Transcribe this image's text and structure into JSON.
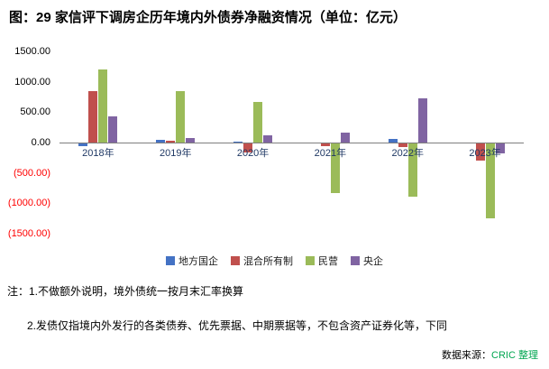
{
  "title": "图：29 家信评下调房企历年境内外债券净融资情况（单位：亿元）",
  "chart_data": {
    "type": "bar",
    "title": "图：29 家信评下调房企历年境内外债券净融资情况（单位：亿元）",
    "categories": [
      "2018年",
      "2019年",
      "2020年",
      "2021年",
      "2022年",
      "2023年"
    ],
    "series": [
      {
        "name": "地方国企",
        "color": "#4472C4",
        "values": [
          -60,
          40,
          15,
          -15,
          55,
          -20
        ]
      },
      {
        "name": "混合所有制",
        "color": "#C0504D",
        "values": [
          840,
          25,
          -160,
          -55,
          -70,
          -300
        ]
      },
      {
        "name": "民营",
        "color": "#9BBB59",
        "values": [
          1200,
          840,
          675,
          -825,
          -885,
          -1245
        ]
      },
      {
        "name": "央企",
        "color": "#8064A2",
        "values": [
          430,
          75,
          115,
          165,
          735,
          -180
        ]
      }
    ],
    "xlabel": "",
    "ylabel": "",
    "ylim": [
      -1500,
      1500
    ],
    "ytick_step": 500,
    "yticks": [
      {
        "v": 1500,
        "label": "1500.00"
      },
      {
        "v": 1000,
        "label": "1000.00"
      },
      {
        "v": 500,
        "label": "500.00"
      },
      {
        "v": 0,
        "label": "0.00"
      },
      {
        "v": -500,
        "label": "(500.00)"
      },
      {
        "v": -1000,
        "label": "(1000.00)"
      },
      {
        "v": -1500,
        "label": "(1500.00)"
      }
    ],
    "negative_tick_color": "#FF0000",
    "negative_tick_format": "parentheses",
    "xtick_color": "#1F3864",
    "grid": false,
    "legend_position": "bottom"
  },
  "notes": [
    "注：1.不做额外说明，境外债统一按月末汇率换算",
    "2.发债仅指境内外发行的各类债券、优先票据、中期票据等，不包含资产证券化等，下同"
  ],
  "source": {
    "prefix": "数据来源：",
    "text": "CRIC 整理",
    "color": "#00A651"
  }
}
